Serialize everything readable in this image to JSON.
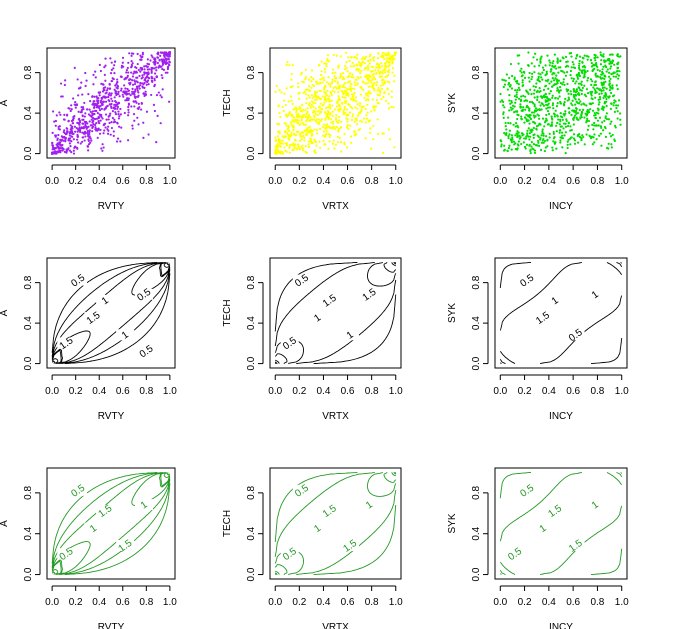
{
  "chart_data": [
    {
      "type": "scatter",
      "position": "row1-col1",
      "xlabel": "RVTY",
      "ylabel": "A",
      "xlim": [
        0,
        1
      ],
      "ylim": [
        0,
        1
      ],
      "xticks": [
        "0.0",
        "0.2",
        "0.4",
        "0.6",
        "0.8",
        "1.0"
      ],
      "yticks": [
        "0.0",
        "0.4",
        "0.8"
      ],
      "color": "#a020f0",
      "n_points": 900,
      "dependence": "strong positive, tail clusters at (0,0) and (1,1)"
    },
    {
      "type": "scatter",
      "position": "row1-col2",
      "xlabel": "VRTX",
      "ylabel": "TECH",
      "xlim": [
        0,
        1
      ],
      "ylim": [
        0,
        1
      ],
      "xticks": [
        "0.0",
        "0.2",
        "0.4",
        "0.6",
        "0.8",
        "1.0"
      ],
      "yticks": [
        "0.0",
        "0.4",
        "0.8"
      ],
      "color": "#ffff00",
      "n_points": 1000,
      "dependence": "moderate positive"
    },
    {
      "type": "scatter",
      "position": "row1-col3",
      "xlabel": "INCY",
      "ylabel": "SYK",
      "xlim": [
        0,
        1
      ],
      "ylim": [
        0,
        1
      ],
      "xticks": [
        "0.0",
        "0.2",
        "0.4",
        "0.6",
        "0.8",
        "1.0"
      ],
      "yticks": [
        "0.0",
        "0.4",
        "0.8"
      ],
      "color": "#00dd00",
      "n_points": 1000,
      "dependence": "weak positive"
    },
    {
      "type": "contour",
      "position": "row2-col1",
      "xlabel": "RVTY",
      "ylabel": "A",
      "xlim": [
        0,
        1
      ],
      "ylim": [
        0,
        1
      ],
      "xticks": [
        "0.0",
        "0.2",
        "0.4",
        "0.6",
        "0.8",
        "1.0"
      ],
      "yticks": [
        "0.0",
        "0.4",
        "0.8"
      ],
      "color": "#000000",
      "levels_labeled": [
        "0.5",
        "1",
        "1.5",
        "0.5",
        "1",
        "1.5",
        "0.5"
      ]
    },
    {
      "type": "contour",
      "position": "row2-col2",
      "xlabel": "VRTX",
      "ylabel": "TECH",
      "xlim": [
        0,
        1
      ],
      "ylim": [
        0,
        1
      ],
      "xticks": [
        "0.0",
        "0.2",
        "0.4",
        "0.6",
        "0.8",
        "1.0"
      ],
      "yticks": [
        "0.0",
        "0.4",
        "0.8"
      ],
      "color": "#000000",
      "levels_labeled": [
        "0.5",
        "1.5",
        "1",
        "1.5",
        "1",
        "0.5"
      ]
    },
    {
      "type": "contour",
      "position": "row2-col3",
      "xlabel": "INCY",
      "ylabel": "SYK",
      "xlim": [
        0,
        1
      ],
      "ylim": [
        0,
        1
      ],
      "xticks": [
        "0.0",
        "0.2",
        "0.4",
        "0.6",
        "0.8",
        "1.0"
      ],
      "yticks": [
        "0.0",
        "0.4",
        "0.8"
      ],
      "color": "#000000",
      "levels_labeled": [
        "0.5",
        "1",
        "1.5",
        "1",
        "0.5"
      ]
    },
    {
      "type": "contour",
      "position": "row3-col1",
      "xlabel": "RVTY",
      "ylabel": "A",
      "xlim": [
        0,
        1
      ],
      "ylim": [
        0,
        1
      ],
      "xticks": [
        "0.0",
        "0.2",
        "0.4",
        "0.6",
        "0.8",
        "1.0"
      ],
      "yticks": [
        "0.0",
        "0.4",
        "0.8"
      ],
      "color": "#229922",
      "levels_labeled": [
        "0.5",
        "1.5",
        "1",
        "1",
        "1.5",
        "0.5"
      ]
    },
    {
      "type": "contour",
      "position": "row3-col2",
      "xlabel": "VRTX",
      "ylabel": "TECH",
      "xlim": [
        0,
        1
      ],
      "ylim": [
        0,
        1
      ],
      "xticks": [
        "0.0",
        "0.2",
        "0.4",
        "0.6",
        "0.8",
        "1.0"
      ],
      "yticks": [
        "0.0",
        "0.4",
        "0.8"
      ],
      "color": "#229922",
      "levels_labeled": [
        "0.5",
        "1.5",
        "1",
        "1",
        "1.5",
        "0.5"
      ]
    },
    {
      "type": "contour",
      "position": "row3-col3",
      "xlabel": "INCY",
      "ylabel": "SYK",
      "xlim": [
        0,
        1
      ],
      "ylim": [
        0,
        1
      ],
      "xticks": [
        "0.0",
        "0.2",
        "0.4",
        "0.6",
        "0.8",
        "1.0"
      ],
      "yticks": [
        "0.0",
        "0.4",
        "0.8"
      ],
      "color": "#229922",
      "levels_labeled": [
        "0.5",
        "1.5",
        "1",
        "1",
        "1.5",
        "0.5"
      ]
    }
  ]
}
